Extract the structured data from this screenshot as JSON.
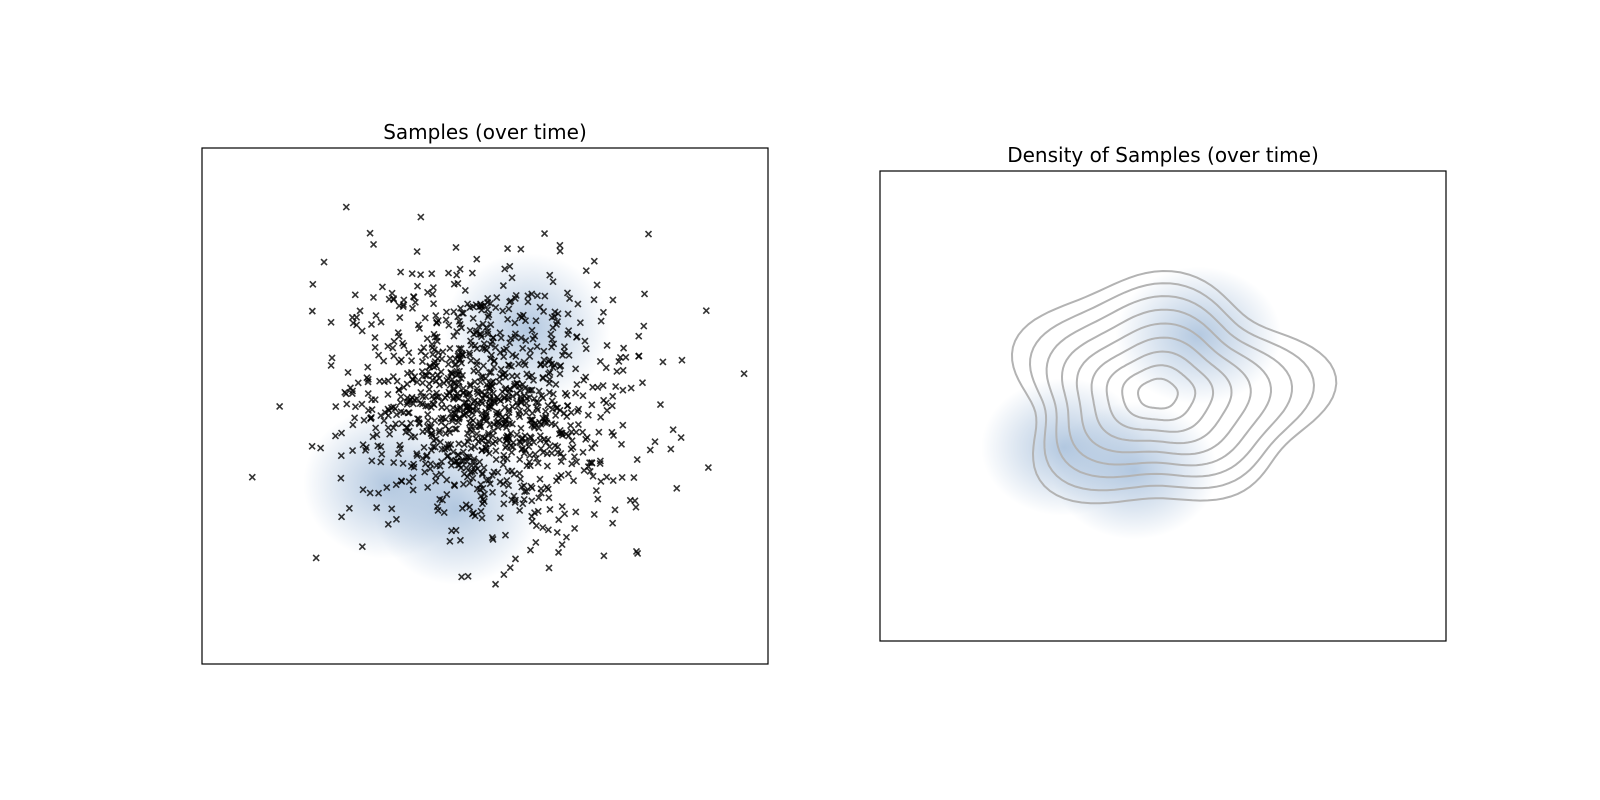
{
  "chart_data": [
    {
      "type": "scatter",
      "title": "Samples (over time)",
      "xlabel": "",
      "ylabel": "",
      "xlim": [
        -4,
        4
      ],
      "ylim": [
        -4,
        4
      ],
      "axes_visible": false,
      "grid": false,
      "marker": "x",
      "marker_color": "#000000",
      "sample_count": 1100,
      "sample_mean": [
        0,
        0
      ],
      "sample_std": 1.0,
      "background_density": [
        {
          "x": 0.6,
          "y": 1.2,
          "sigma": 0.45
        },
        {
          "x": -1.4,
          "y": -1.2,
          "sigma": 0.45
        },
        {
          "x": -0.4,
          "y": -1.6,
          "sigma": 0.45
        }
      ],
      "density_color": "#9ab6d6"
    },
    {
      "type": "contour",
      "title": "Density of Samples (over time)",
      "xlabel": "",
      "ylabel": "",
      "xlim": [
        -4,
        4
      ],
      "ylim": [
        -4,
        4
      ],
      "axes_visible": false,
      "grid": false,
      "contour_color": "#b3b3b3",
      "contour_levels": 9,
      "center": [
        0,
        0.15
      ],
      "background_density": [
        {
          "x": 0.5,
          "y": 1.2,
          "sigma": 0.45
        },
        {
          "x": -1.4,
          "y": -0.7,
          "sigma": 0.45
        },
        {
          "x": -0.4,
          "y": -1.1,
          "sigma": 0.45
        }
      ],
      "density_color": "#9ab6d6"
    }
  ]
}
